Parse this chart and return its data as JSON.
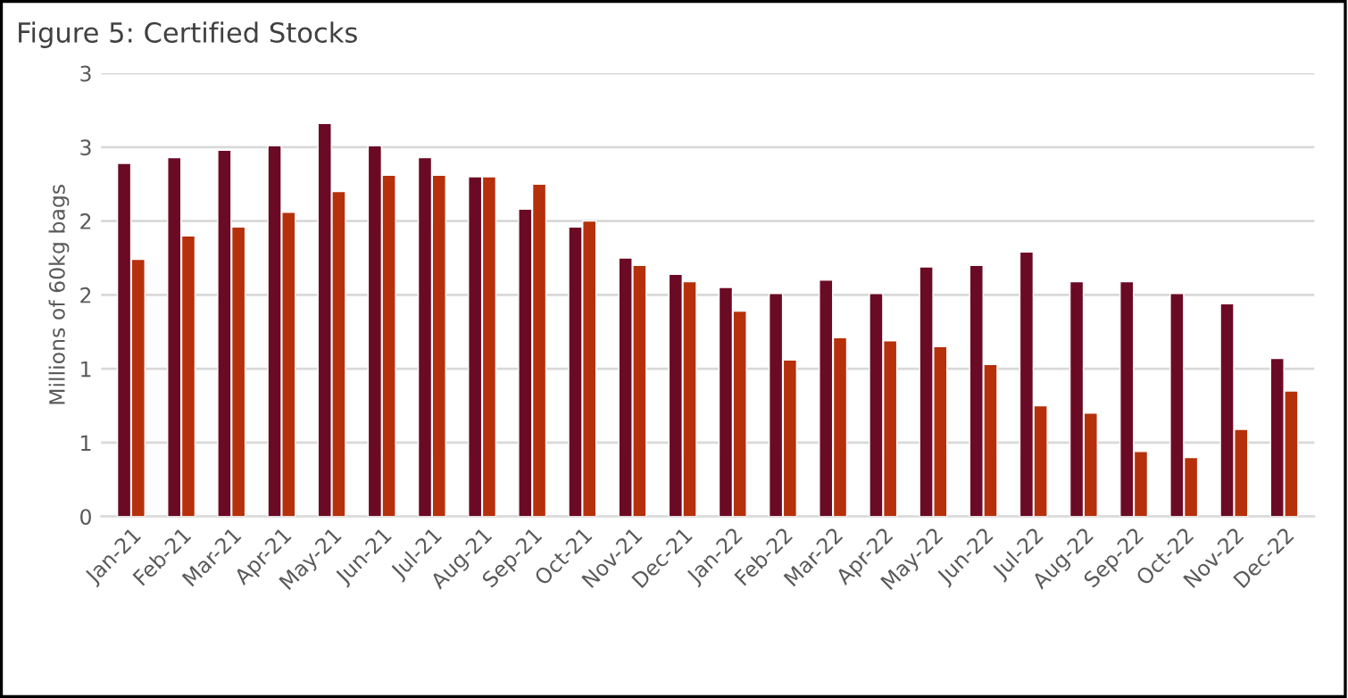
{
  "chart_data": {
    "type": "bar",
    "title": "Figure 5: Certified Stocks",
    "ylabel": "Millions of 60kg bags",
    "categories": [
      "Jan-21",
      "Feb-21",
      "Mar-21",
      "Apr-21",
      "May-21",
      "Jun-21",
      "Jul-21",
      "Aug-21",
      "Sep-21",
      "Oct-21",
      "Nov-21",
      "Dec-21",
      "Jan-22",
      "Feb-22",
      "Mar-22",
      "Apr-22",
      "May-22",
      "Jun-22",
      "Jul-22",
      "Aug-22",
      "Sep-22",
      "Oct-22",
      "Nov-22",
      "Dec-22"
    ],
    "series": [
      {
        "color": "#6b0a24",
        "values": [
          2.39,
          2.43,
          2.48,
          2.51,
          2.66,
          2.51,
          2.43,
          2.3,
          2.08,
          1.96,
          1.75,
          1.64,
          1.55,
          1.51,
          1.6,
          1.51,
          1.69,
          1.7,
          1.79,
          1.59,
          1.59,
          1.51,
          1.44,
          1.07
        ]
      },
      {
        "color": "#b5300b",
        "values": [
          1.74,
          1.9,
          1.96,
          2.06,
          2.2,
          2.31,
          2.31,
          2.3,
          2.25,
          2.0,
          1.7,
          1.59,
          1.39,
          1.06,
          1.21,
          1.19,
          1.15,
          1.03,
          0.75,
          0.7,
          0.44,
          0.4,
          0.59,
          0.85
        ]
      }
    ],
    "ylim": [
      0,
      3
    ],
    "yticks": [
      0,
      {
        "value": 0.5,
        "label": "1"
      },
      1,
      {
        "value": 1.5,
        "label": "2"
      },
      2,
      {
        "value": 2.5,
        "label": "3"
      },
      3
    ],
    "grid": "y",
    "legend": false
  }
}
